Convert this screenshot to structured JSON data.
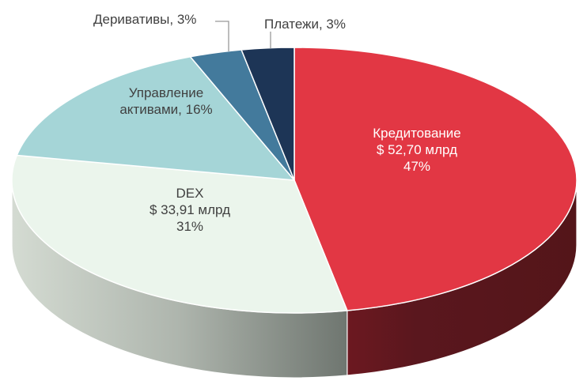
{
  "chart_data": {
    "type": "pie",
    "style": "3d",
    "title": "",
    "unit": "млрд $",
    "slices": [
      {
        "key": "lending",
        "name": "Кредитование",
        "value": 52.7,
        "value_label": "$ 52,70 млрд",
        "percent": 47,
        "percent_label": "47%",
        "color": "#e23744",
        "side_color": "#5a171e"
      },
      {
        "key": "dex",
        "name": "DEX",
        "value": 33.91,
        "value_label": "$ 33,91 млрд",
        "percent": 31,
        "percent_label": "31%",
        "color": "#ebf5ec",
        "side_color": "#a9b0a8"
      },
      {
        "key": "asset_mgmt",
        "name": "Управление активами",
        "percent": 16,
        "percent_label": "16%",
        "color": "#a5d5d7",
        "side_color": "#7aa3a5"
      },
      {
        "key": "derivatives",
        "name": "Деривативы",
        "percent": 3,
        "percent_label": "3%",
        "color": "#437a9c",
        "side_color": "#2e566e"
      },
      {
        "key": "payments",
        "name": "Платежи",
        "percent": 3,
        "percent_label": "3%",
        "color": "#1d3556",
        "side_color": "#12223a"
      }
    ],
    "start_angle_deg": 0,
    "direction": "clockwise"
  },
  "labels": {
    "lending": {
      "line1": "Кредитование",
      "line2": "$ 52,70 млрд",
      "line3": "47%"
    },
    "dex": {
      "line1": "DEX",
      "line2": "$ 33,91 млрд",
      "line3": "31%"
    },
    "asset_mgmt": {
      "line1": "Управление",
      "line2": "активами, 16%"
    },
    "derivatives": {
      "line1": "Деривативы, 3%"
    },
    "payments": {
      "line1": "Платежи, 3%"
    }
  }
}
